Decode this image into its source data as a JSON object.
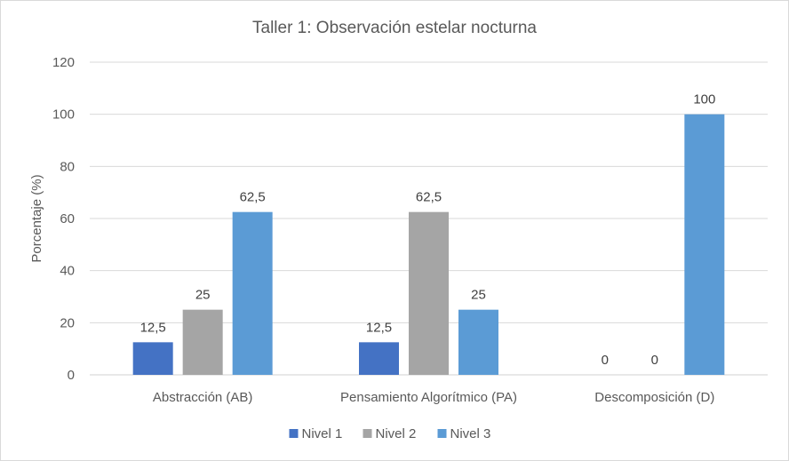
{
  "chart_data": {
    "type": "bar",
    "title": "Taller 1: Observación estelar nocturna",
    "xlabel": "",
    "ylabel": "Porcentaje (%)",
    "ylim": [
      0,
      120
    ],
    "yticks": [
      0,
      20,
      40,
      60,
      80,
      100,
      120
    ],
    "grid": true,
    "legend_position": "bottom",
    "categories": [
      "Abstracción (AB)",
      "Pensamiento Algorítmico (PA)",
      "Descomposición (D)"
    ],
    "series": [
      {
        "name": "Nivel 1",
        "color": "#4472c4",
        "values": [
          12.5,
          12.5,
          0
        ],
        "labels": [
          "12,5",
          "12,5",
          "0"
        ]
      },
      {
        "name": "Nivel 2",
        "color": "#a5a5a5",
        "values": [
          25,
          62.5,
          0
        ],
        "labels": [
          "25",
          "62,5",
          "0"
        ]
      },
      {
        "name": "Nivel 3",
        "color": "#5b9bd5",
        "values": [
          62.5,
          25,
          100
        ],
        "labels": [
          "62,5",
          "25",
          "100"
        ]
      }
    ]
  }
}
